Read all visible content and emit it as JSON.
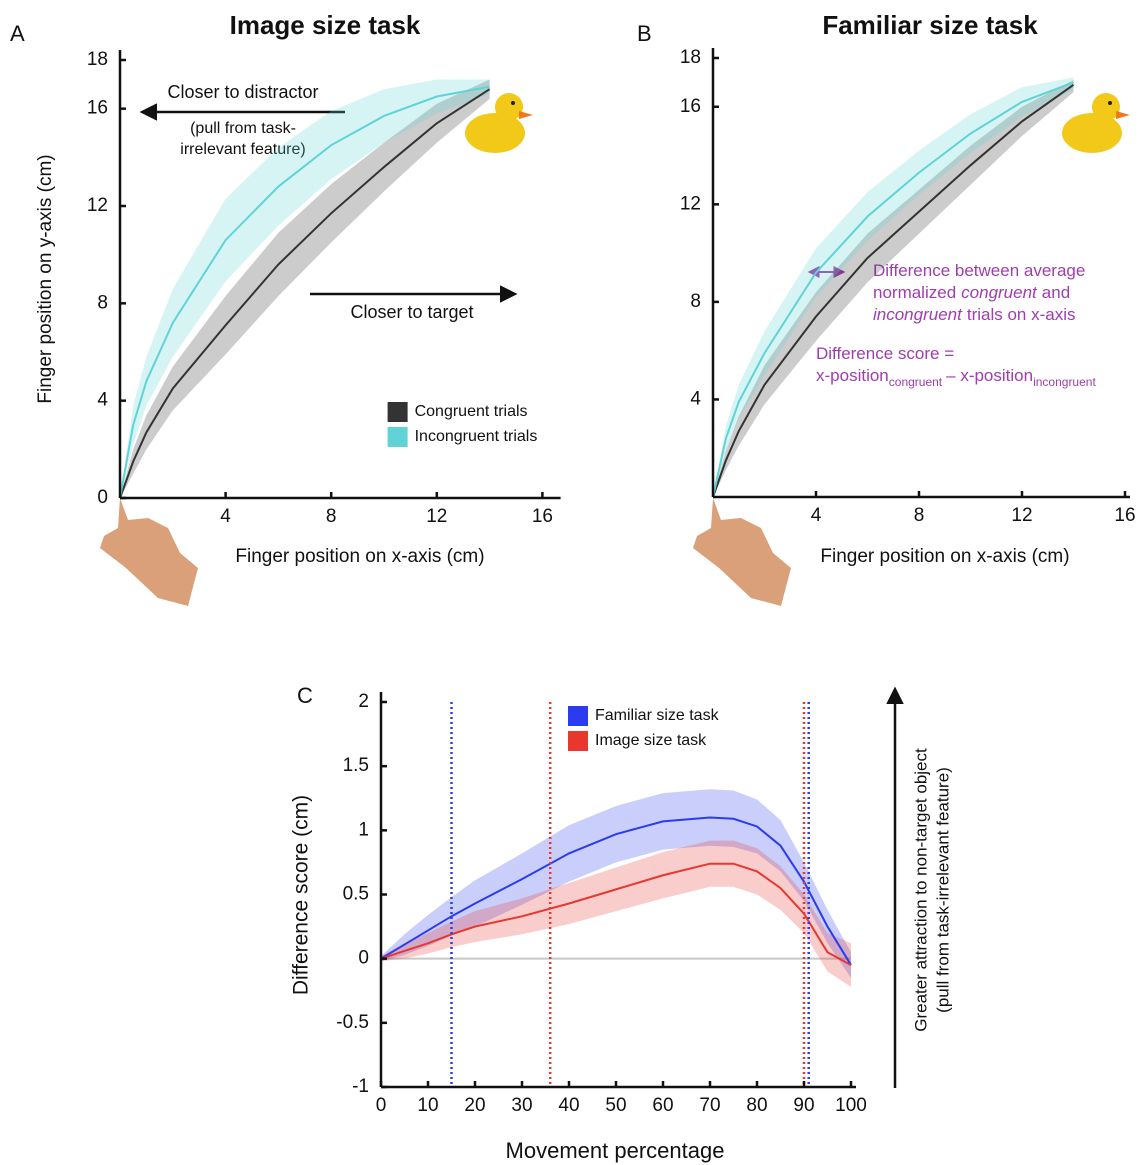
{
  "chart_data": [
    {
      "type": "line",
      "label": "A",
      "title": "Image size task",
      "title_color": "#e8302a",
      "x_label": "Finger position on x-axis (cm)",
      "y_label": "Finger position on y-axis (cm)",
      "xlim": [
        0,
        16.5
      ],
      "ylim": [
        0,
        18
      ],
      "xticks": [
        4,
        8,
        12,
        16
      ],
      "yticks": [
        0,
        4,
        8,
        12,
        16,
        18
      ],
      "annotations": {
        "distractor": "Closer to distractor",
        "distractor_note": [
          "(pull from task-",
          "irrelevant feature)"
        ],
        "target": "Closer to target"
      },
      "legend": "lower right",
      "series": [
        {
          "name": "Congruent trials",
          "color": "#333333",
          "x": [
            0,
            0.5,
            1,
            2,
            4,
            6,
            8,
            10,
            12,
            14
          ],
          "values": [
            0,
            1.5,
            2.7,
            4.5,
            7.1,
            9.6,
            11.7,
            13.6,
            15.4,
            16.8
          ],
          "lower": [
            0,
            1.0,
            2.0,
            3.6,
            5.9,
            8.3,
            10.5,
            12.6,
            14.6,
            16.4
          ],
          "upper": [
            0,
            2.0,
            3.4,
            5.4,
            8.3,
            10.9,
            12.9,
            14.6,
            16.2,
            17.2
          ]
        },
        {
          "name": "Incongruent trials",
          "color": "#5fd3d6",
          "x": [
            0,
            0.5,
            1,
            2,
            4,
            6,
            8,
            10,
            12,
            14
          ],
          "values": [
            0,
            3,
            4.8,
            7.2,
            10.6,
            12.8,
            14.5,
            15.7,
            16.5,
            16.9
          ],
          "lower": [
            0,
            2.2,
            3.8,
            5.8,
            8.9,
            11.2,
            13.1,
            14.6,
            15.8,
            16.6
          ],
          "upper": [
            0,
            3.8,
            5.8,
            8.6,
            12.3,
            14.4,
            15.9,
            16.8,
            17.2,
            17.2
          ]
        }
      ]
    },
    {
      "type": "line",
      "label": "B",
      "title": "Familiar size task",
      "title_color": "#2a3cff",
      "x_label": "Finger position on x-axis (cm)",
      "xlim": [
        0,
        16
      ],
      "ylim": [
        0,
        18
      ],
      "xticks": [
        4,
        8,
        12,
        16
      ],
      "yticks": [
        4,
        8,
        12,
        16,
        18
      ],
      "note": [
        [
          "Difference between average"
        ],
        [
          "normalized",
          "congruent",
          "and"
        ],
        [
          "incongruent",
          "trials on x-axis"
        ]
      ],
      "formula": [
        [
          "Difference score ="
        ],
        [
          "x-position",
          "congruent",
          "– x-position",
          "incongruent"
        ]
      ],
      "series": [
        {
          "color": "#333333",
          "x": [
            0,
            0.5,
            1,
            2,
            4,
            6,
            8,
            10,
            12,
            14
          ],
          "values": [
            0,
            1.5,
            2.7,
            4.6,
            7.4,
            9.8,
            11.7,
            13.6,
            15.4,
            16.9
          ],
          "lower": [
            0,
            1.1,
            2.1,
            3.8,
            6.4,
            8.8,
            10.8,
            12.8,
            14.8,
            16.6
          ],
          "upper": [
            0,
            1.9,
            3.3,
            5.4,
            8.4,
            10.8,
            12.6,
            14.4,
            16.0,
            17.1
          ]
        },
        {
          "color": "#5fd3d6",
          "x": [
            0,
            0.5,
            1,
            2,
            4,
            6,
            8,
            10,
            12,
            14
          ],
          "values": [
            0,
            2.4,
            3.9,
            5.9,
            9.2,
            11.5,
            13.3,
            14.9,
            16.2,
            17.0
          ],
          "lower": [
            0,
            1.9,
            3.2,
            5.0,
            8.2,
            10.5,
            12.4,
            14.1,
            15.6,
            16.7
          ],
          "upper": [
            0,
            2.9,
            4.6,
            6.8,
            10.2,
            12.5,
            14.2,
            15.7,
            16.8,
            17.2
          ]
        }
      ]
    },
    {
      "type": "line",
      "label": "C",
      "x_label": "Movement percentage",
      "y_label": "Difference score (cm)",
      "side_note": [
        "Greater attraction to non-target object",
        "(pull from task-irrelevant feature)"
      ],
      "xlim": [
        0,
        100
      ],
      "ylim": [
        -1,
        2
      ],
      "xticks": [
        0,
        10,
        20,
        30,
        40,
        50,
        60,
        70,
        80,
        90,
        100
      ],
      "yticks": [
        -1,
        -0.5,
        0,
        0.5,
        1,
        1.5,
        2
      ],
      "legend": "upper center",
      "reference_line": 0,
      "vlines": [
        {
          "value": 15,
          "color": "#2b3cf0"
        },
        {
          "value": 36,
          "color": "#e8372f"
        },
        {
          "value": 90,
          "color": "#e8372f"
        },
        {
          "value": 91,
          "color": "#2b3cf0"
        }
      ],
      "series": [
        {
          "name": "Familiar size task",
          "color": "#2b3cf0",
          "x": [
            0,
            5,
            10,
            15,
            20,
            30,
            40,
            50,
            60,
            70,
            75,
            80,
            85,
            90,
            95,
            100
          ],
          "values": [
            0,
            0.11,
            0.22,
            0.33,
            0.43,
            0.62,
            0.82,
            0.97,
            1.07,
            1.1,
            1.09,
            1.03,
            0.88,
            0.6,
            0.25,
            -0.05
          ],
          "lower": [
            -0.02,
            0.03,
            0.1,
            0.18,
            0.25,
            0.42,
            0.6,
            0.75,
            0.85,
            0.88,
            0.87,
            0.82,
            0.68,
            0.45,
            0.12,
            -0.15
          ],
          "upper": [
            0.02,
            0.19,
            0.34,
            0.48,
            0.61,
            0.82,
            1.04,
            1.19,
            1.29,
            1.32,
            1.31,
            1.24,
            1.08,
            0.75,
            0.38,
            0.05
          ]
        },
        {
          "name": "Image size task",
          "color": "#e8372f",
          "x": [
            0,
            5,
            10,
            15,
            20,
            30,
            40,
            50,
            60,
            70,
            75,
            80,
            85,
            90,
            95,
            100
          ],
          "values": [
            0,
            0.06,
            0.12,
            0.19,
            0.25,
            0.33,
            0.43,
            0.54,
            0.65,
            0.74,
            0.74,
            0.68,
            0.55,
            0.35,
            0.05,
            -0.05
          ],
          "lower": [
            -0.02,
            0,
            0.04,
            0.09,
            0.13,
            0.19,
            0.27,
            0.37,
            0.47,
            0.56,
            0.56,
            0.5,
            0.38,
            0.2,
            -0.1,
            -0.22
          ],
          "upper": [
            0.02,
            0.12,
            0.2,
            0.29,
            0.37,
            0.47,
            0.59,
            0.71,
            0.83,
            0.92,
            0.92,
            0.86,
            0.72,
            0.5,
            0.2,
            0.12
          ]
        }
      ]
    }
  ]
}
